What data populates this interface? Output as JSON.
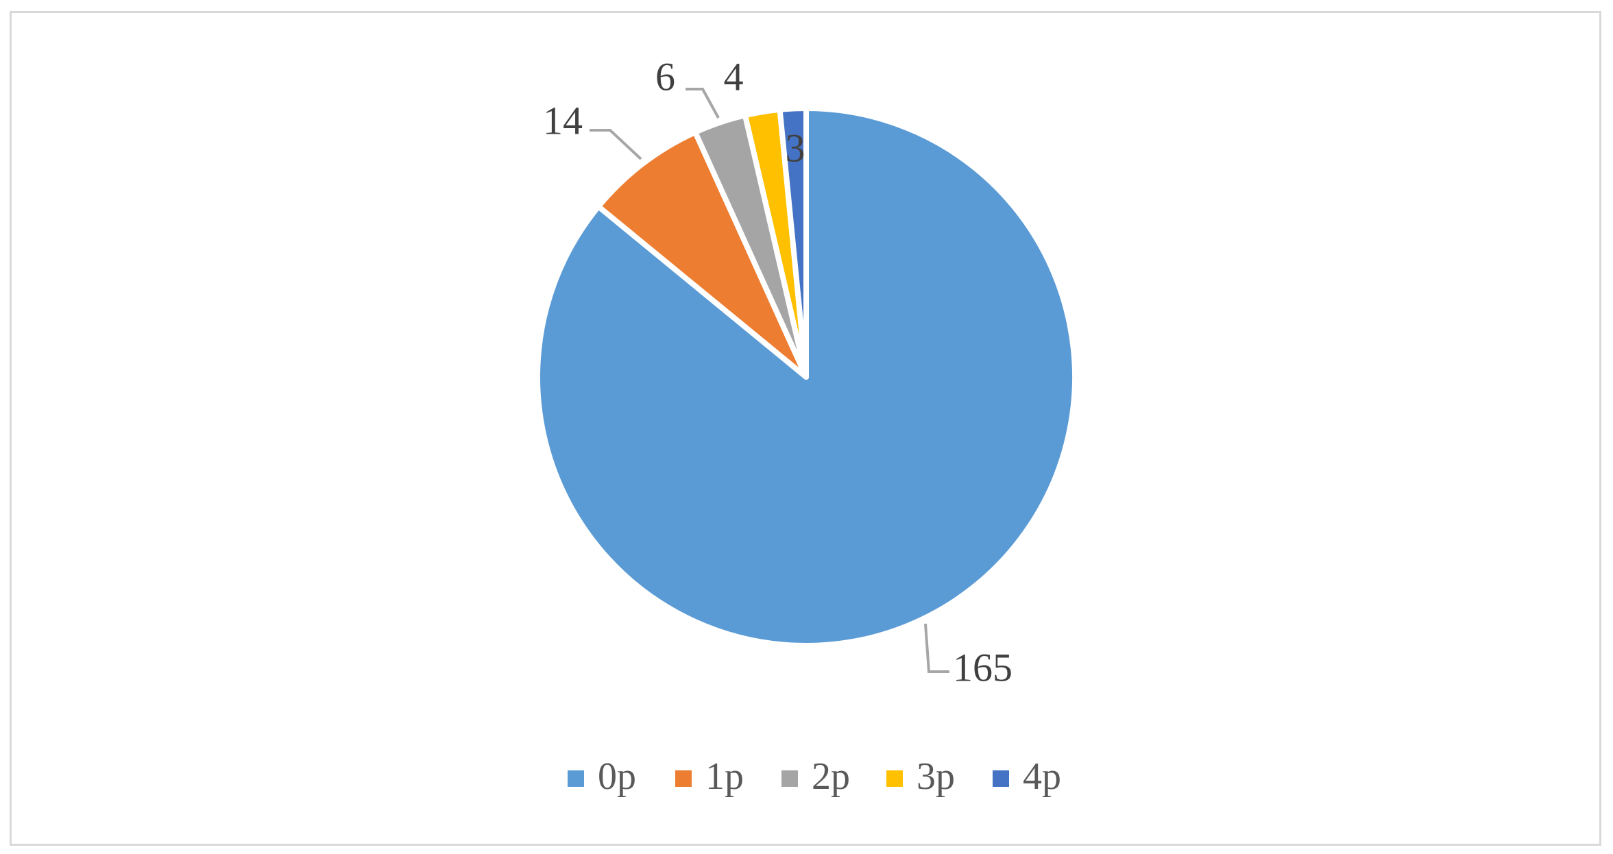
{
  "chart_data": {
    "type": "pie",
    "categories": [
      "0p",
      "1p",
      "2p",
      "3p",
      "4p"
    ],
    "values": [
      165,
      14,
      6,
      4,
      3
    ],
    "data_labels": [
      "165",
      "14",
      "6",
      "4",
      "3"
    ],
    "colors": [
      "#5b9bd5",
      "#ed7d31",
      "#a5a5a5",
      "#ffc000",
      "#4472c4"
    ],
    "legend_position": "bottom",
    "start_angle": "12 o'clock, clockwise"
  }
}
